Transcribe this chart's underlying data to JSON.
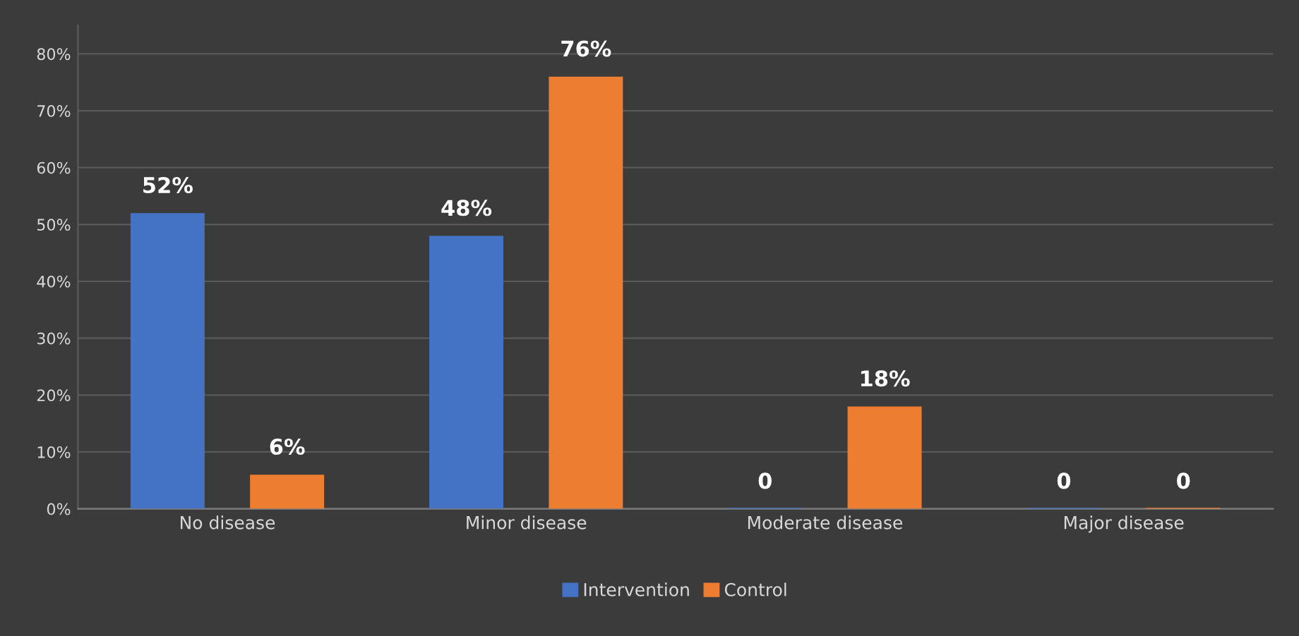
{
  "chart_data": {
    "type": "bar",
    "categories": [
      "No disease",
      "Minor disease",
      "Moderate disease",
      "Major disease"
    ],
    "series": [
      {
        "name": "Intervention",
        "color": "#4472c4",
        "values": [
          52,
          48,
          0,
          0
        ],
        "value_labels": [
          "52%",
          "48%",
          "0",
          "0"
        ]
      },
      {
        "name": "Control",
        "color": "#ed7d31",
        "values": [
          6,
          76,
          18,
          0
        ],
        "value_labels": [
          "6%",
          "76%",
          "18%",
          "0"
        ]
      }
    ],
    "ylim": [
      0,
      85
    ],
    "yticks": [
      {
        "value": 0,
        "label": "0%"
      },
      {
        "value": 10,
        "label": "10%"
      },
      {
        "value": 20,
        "label": "20%"
      },
      {
        "value": 30,
        "label": "30%"
      },
      {
        "value": 40,
        "label": "40%"
      },
      {
        "value": 50,
        "label": "50%"
      },
      {
        "value": 60,
        "label": "60%"
      },
      {
        "value": 70,
        "label": "70%"
      },
      {
        "value": 80,
        "label": "80%"
      }
    ],
    "grid": "y",
    "legend": "bottom"
  }
}
